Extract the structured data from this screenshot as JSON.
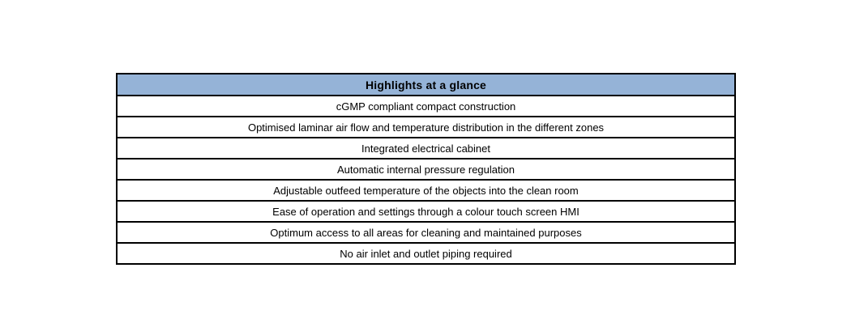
{
  "table": {
    "header": "Highlights at a glance",
    "rows": [
      "cGMP compliant compact construction",
      "Optimised laminar air flow and temperature distribution in the different zones",
      "Integrated electrical cabinet",
      "Automatic internal pressure regulation",
      "Adjustable outfeed temperature of the objects into the clean room",
      "Ease of operation and settings through a colour touch screen HMI",
      "Optimum access to all areas for cleaning and maintained purposes",
      "No air inlet and outlet piping required"
    ],
    "colors": {
      "header_bg": "#95B3D7",
      "border": "#000000",
      "text": "#000000",
      "page_bg": "#FFFFFF"
    }
  }
}
